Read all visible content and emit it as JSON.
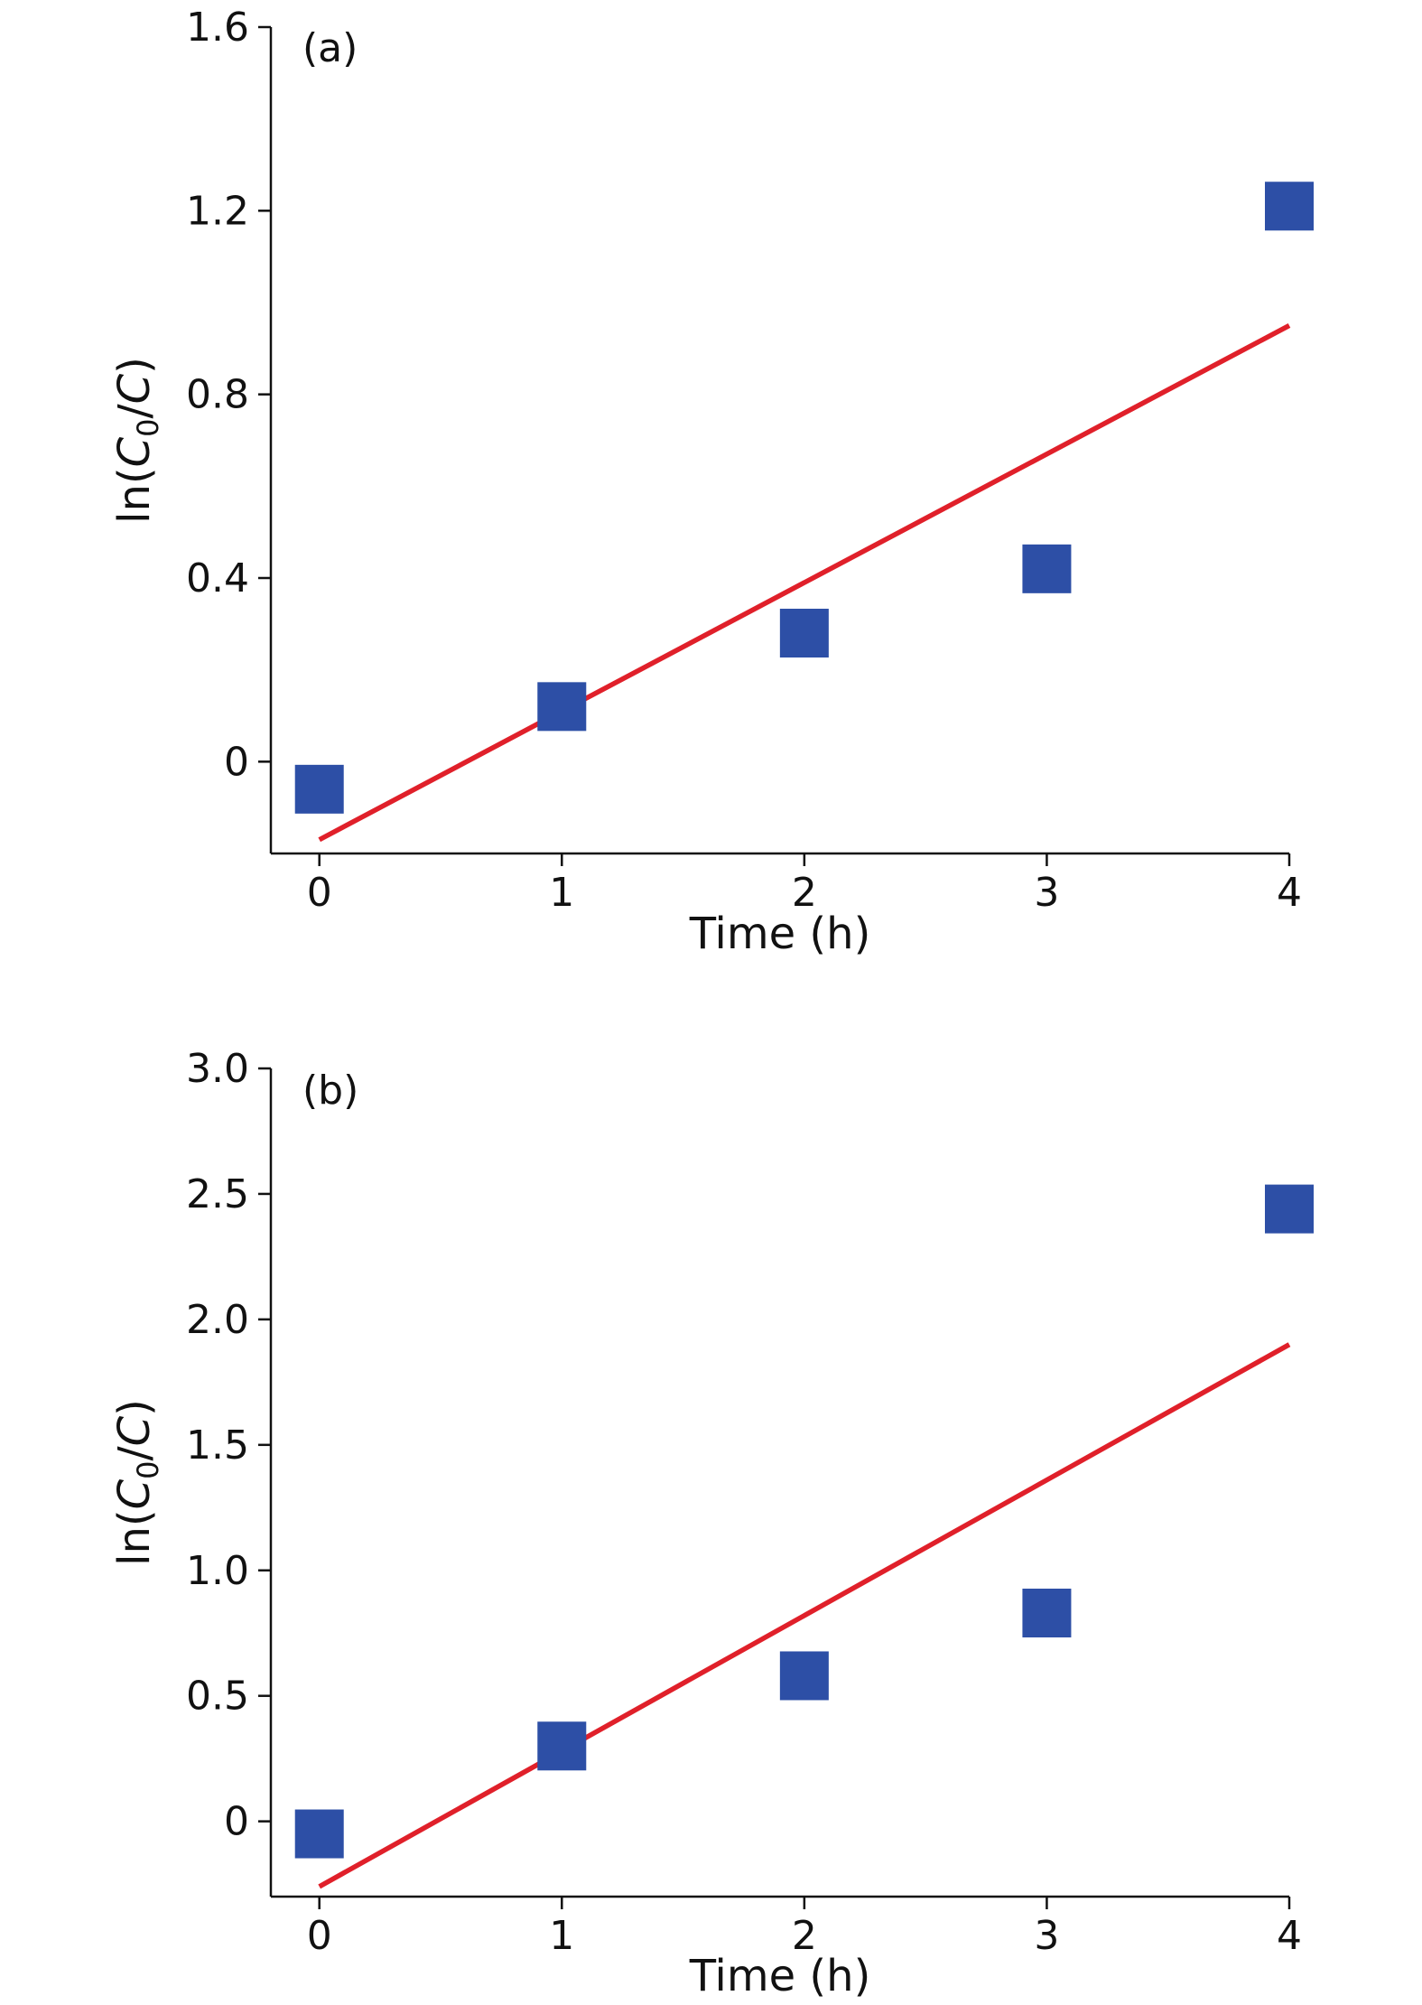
{
  "chart_data": [
    {
      "type": "scatter",
      "panel_label": "(a)",
      "xlabel": "Time (h)",
      "ylabel": {
        "prefix": "ln(",
        "c_main": "C",
        "c_sub": "0",
        "suffix": "/C)"
      },
      "xlim": [
        -0.2,
        4.0
      ],
      "ylim": [
        -0.2,
        1.6
      ],
      "x_ticks": [
        0,
        1,
        2,
        3,
        4
      ],
      "y_ticks": [
        0,
        0.4,
        0.8,
        1.2,
        1.6
      ],
      "y_tick_labels": [
        "0",
        "0.4",
        "0.8",
        "1.2",
        "1.6"
      ],
      "grid": false,
      "series": [
        {
          "kind": "points",
          "marker": "square",
          "color": "#2d4fa6",
          "x": [
            0,
            1,
            2,
            3,
            4
          ],
          "y": [
            -0.06,
            0.12,
            0.28,
            0.42,
            1.21
          ]
        },
        {
          "kind": "fit_line",
          "color": "#e0202a",
          "x": [
            0,
            4
          ],
          "y": [
            -0.17,
            0.95
          ]
        }
      ]
    },
    {
      "type": "scatter",
      "panel_label": "(b)",
      "xlabel": "Time (h)",
      "ylabel": {
        "prefix": "ln(",
        "c_main": "C",
        "c_sub": "0",
        "suffix": "/C)"
      },
      "xlim": [
        -0.2,
        4.0
      ],
      "ylim": [
        -0.3,
        3.0
      ],
      "x_ticks": [
        0,
        1,
        2,
        3,
        4
      ],
      "y_ticks": [
        0,
        0.5,
        1.0,
        1.5,
        2.0,
        2.5,
        3.0
      ],
      "y_tick_labels": [
        "0",
        "0.5",
        "1.0",
        "1.5",
        "2.0",
        "2.5",
        "3.0"
      ],
      "grid": false,
      "series": [
        {
          "kind": "points",
          "marker": "square",
          "color": "#2d4fa6",
          "x": [
            0,
            1,
            2,
            3,
            4
          ],
          "y": [
            -0.05,
            0.3,
            0.58,
            0.83,
            2.44
          ]
        },
        {
          "kind": "fit_line",
          "color": "#e0202a",
          "x": [
            0,
            4
          ],
          "y": [
            -0.26,
            1.9
          ]
        }
      ]
    }
  ]
}
